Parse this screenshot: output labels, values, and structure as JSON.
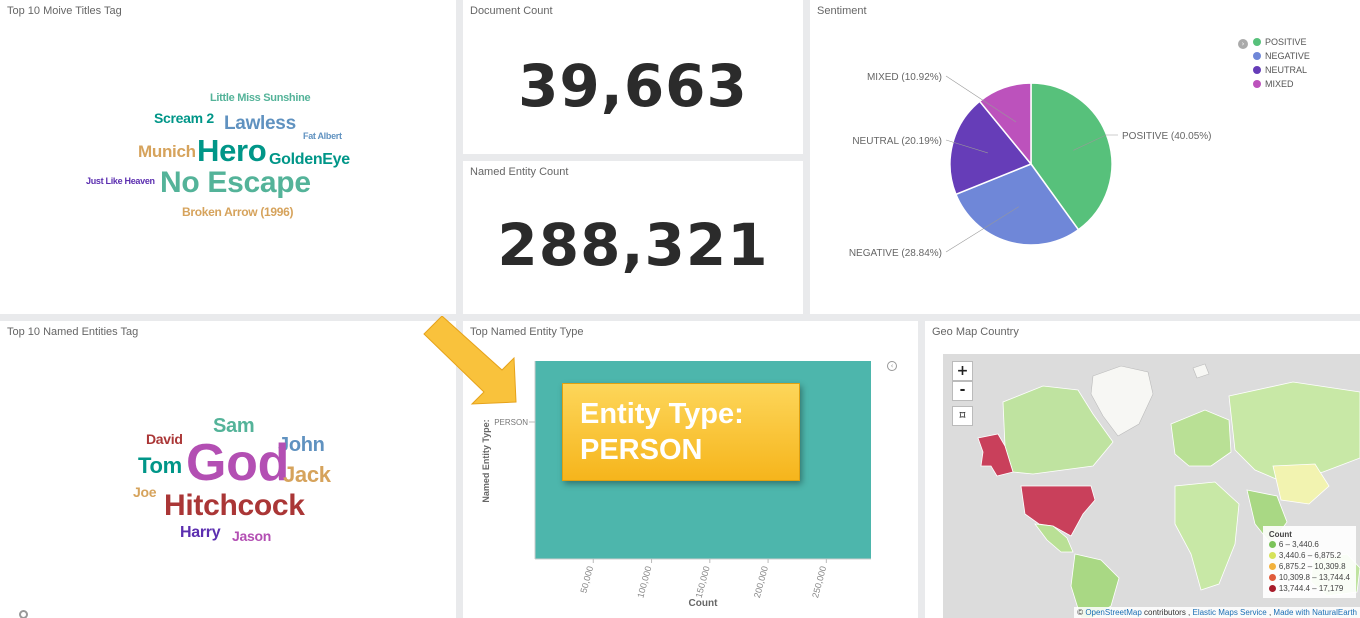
{
  "panels": {
    "movie_titles": {
      "title": "Top 10 Moive Titles Tag",
      "words": [
        {
          "text": "Little Miss Sunshine",
          "color": "#54b399"
        },
        {
          "text": "Scream 2",
          "color": "#009688"
        },
        {
          "text": "Lawless",
          "color": "#6092c0"
        },
        {
          "text": "Fat Albert",
          "color": "#6092c0"
        },
        {
          "text": "Munich",
          "color": "#d6a35c"
        },
        {
          "text": "Hero",
          "color": "#009688"
        },
        {
          "text": "GoldenEye",
          "color": "#009688"
        },
        {
          "text": "Just Like Heaven",
          "color": "#5c2fb0"
        },
        {
          "text": "No Escape",
          "color": "#54b399"
        },
        {
          "text": "Broken Arrow (1996)",
          "color": "#d6a35c"
        }
      ]
    },
    "document_count": {
      "title": "Document Count",
      "value": "39,663"
    },
    "named_entity_count": {
      "title": "Named Entity Count",
      "value": "288,321"
    },
    "sentiment": {
      "title": "Sentiment",
      "legend": [
        {
          "label": "POSITIVE",
          "color": "#57c17b"
        },
        {
          "label": "NEGATIVE",
          "color": "#6f87d8"
        },
        {
          "label": "NEUTRAL",
          "color": "#663db8"
        },
        {
          "label": "MIXED",
          "color": "#bc52bc"
        }
      ],
      "slice_labels": [
        "POSITIVE (40.05%)",
        "NEGATIVE (28.84%)",
        "NEUTRAL (20.19%)",
        "MIXED (10.92%)"
      ]
    },
    "named_entities": {
      "title": "Top 10 Named Entities Tag",
      "words": [
        {
          "text": "Sam",
          "color": "#54b399"
        },
        {
          "text": "David",
          "color": "#aa3636"
        },
        {
          "text": "John",
          "color": "#6092c0"
        },
        {
          "text": "Tom",
          "color": "#009688"
        },
        {
          "text": "God",
          "color": "#b34fb3"
        },
        {
          "text": "Jack",
          "color": "#d6a35c"
        },
        {
          "text": "Joe",
          "color": "#d6a35c"
        },
        {
          "text": "Hitchcock",
          "color": "#aa3636"
        },
        {
          "text": "Harry",
          "color": "#5c2fb0"
        },
        {
          "text": "Jason",
          "color": "#b34fb3"
        }
      ]
    },
    "entity_type": {
      "title": "Top Named Entity Type",
      "ylabel": "Named Entity Type:",
      "xlabel": "Count",
      "category": "PERSON",
      "ticks": [
        "50,000",
        "100,000",
        "150,000",
        "200,000",
        "250,000"
      ],
      "bar_color": "#4db6ac",
      "callout": [
        "Entity Type:",
        "PERSON"
      ]
    },
    "geo_map": {
      "title": "Geo Map Country",
      "zoom_in": "+",
      "zoom_out": "-",
      "fit_icon": "⌑",
      "legend_title": "Count",
      "legend": [
        {
          "label": "6 – 3,440.6",
          "color": "#7bc35a"
        },
        {
          "label": "3,440.6 – 6,875.2",
          "color": "#d6e35a"
        },
        {
          "label": "6,875.2 – 10,309.8",
          "color": "#f2b13c"
        },
        {
          "label": "10,309.8 – 13,744.4",
          "color": "#e05a3a"
        },
        {
          "label": "13,744.4 – 17,179",
          "color": "#a71b2a"
        }
      ],
      "attribution_prefix": "© ",
      "attribution_osm": "OpenStreetMap",
      "attribution_mid": " contributors , ",
      "attribution_ems": "Elastic Maps Service",
      "attribution_sep": " , ",
      "attribution_ne": "Made with NaturalEarth"
    }
  },
  "chart_data": [
    {
      "type": "pie",
      "title": "Sentiment",
      "categories": [
        "POSITIVE",
        "NEGATIVE",
        "NEUTRAL",
        "MIXED"
      ],
      "values": [
        40.05,
        28.84,
        20.19,
        10.92
      ]
    },
    {
      "type": "bar",
      "title": "Top Named Entity Type",
      "orientation": "horizontal",
      "categories": [
        "PERSON"
      ],
      "values": [
        288321
      ],
      "xlabel": "Count",
      "ylabel": "Named Entity Type:",
      "xlim": [
        0,
        288321
      ]
    }
  ]
}
